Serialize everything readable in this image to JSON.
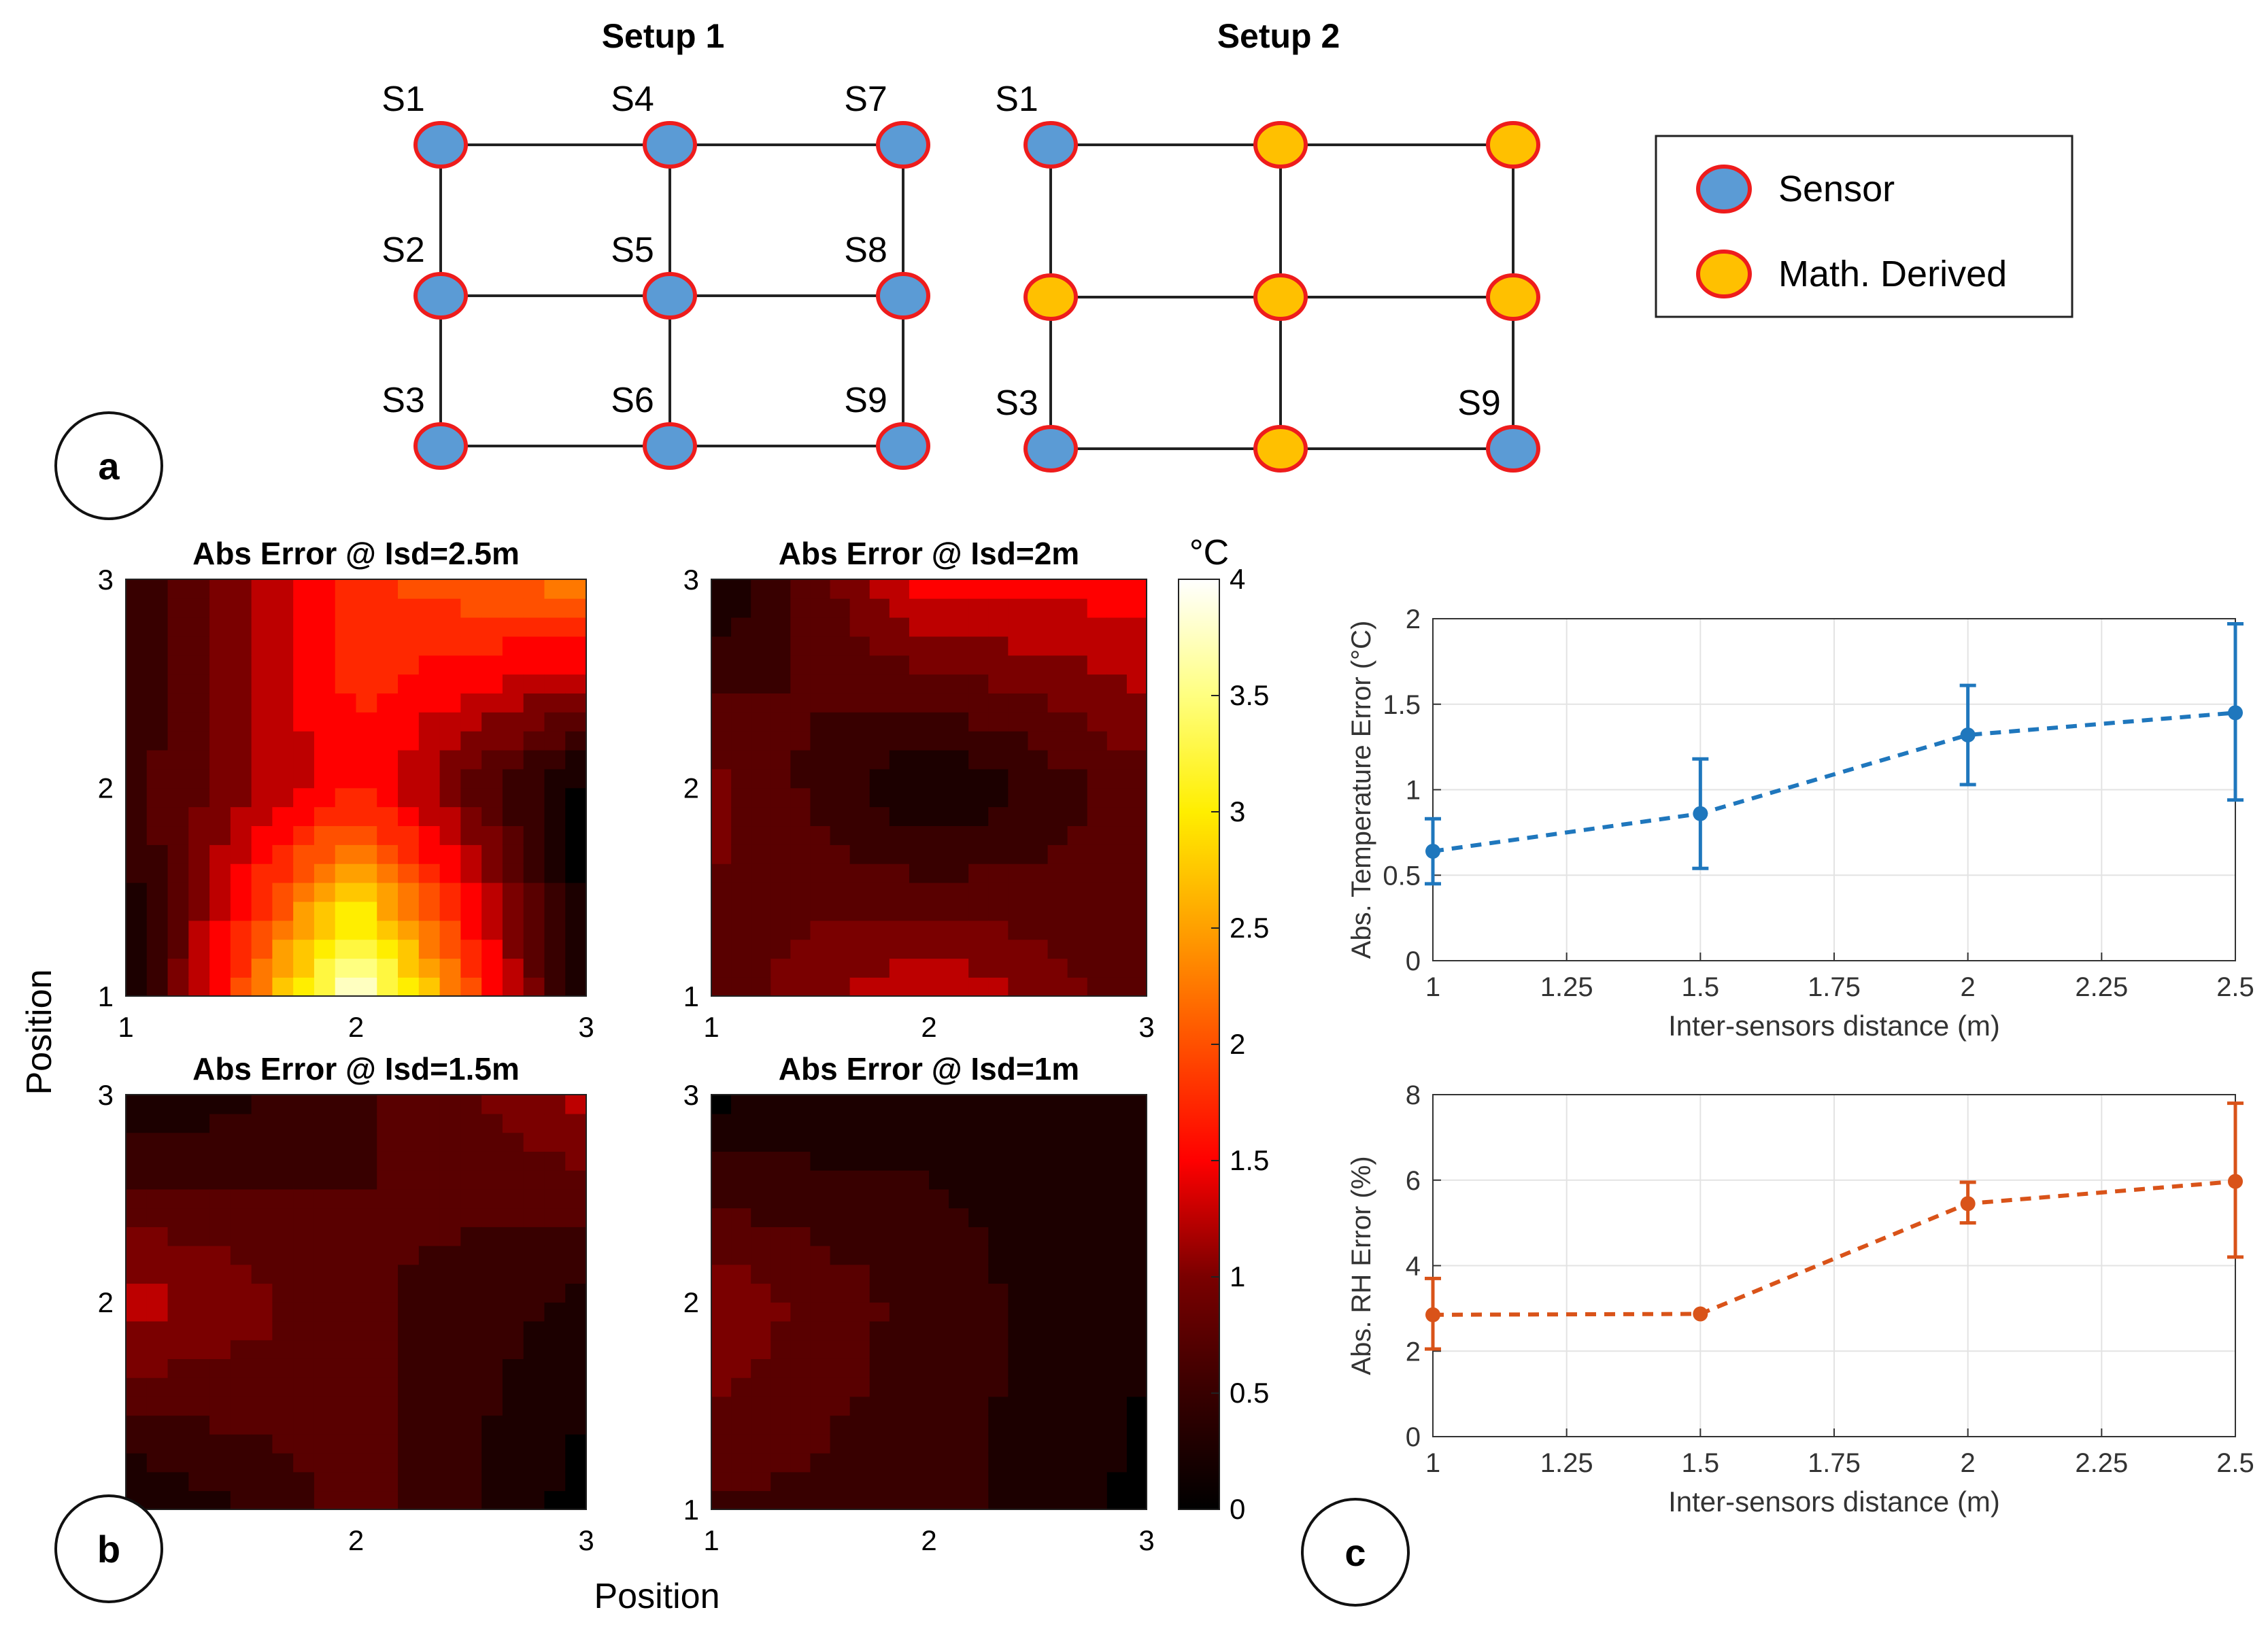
{
  "panel_a": {
    "badge": "a",
    "setup1": {
      "title": "Setup 1",
      "labels": [
        "S1",
        "S4",
        "S7",
        "S2",
        "S5",
        "S8",
        "S3",
        "S6",
        "S9"
      ],
      "kinds": [
        "sensor",
        "sensor",
        "sensor",
        "sensor",
        "sensor",
        "sensor",
        "sensor",
        "sensor",
        "sensor"
      ]
    },
    "setup2": {
      "title": "Setup 2",
      "labels": [
        "S1",
        "",
        "",
        "",
        "",
        "",
        "S3",
        "",
        "S9"
      ],
      "kinds": [
        "sensor",
        "derived",
        "derived",
        "derived",
        "derived",
        "derived",
        "sensor",
        "derived",
        "sensor"
      ]
    },
    "legend": {
      "sensor": "Sensor",
      "derived": "Math. Derived"
    },
    "colors": {
      "sensor": "#5b9bd5",
      "derived": "#ffc000",
      "outline": "#ee1c1c",
      "line": "#222222"
    }
  },
  "panel_b": {
    "badge": "b",
    "ylabel": "Position",
    "xlabel": "Position",
    "colorbar": {
      "unit": "°C",
      "min": 0,
      "max": 4,
      "ticks": [
        "0",
        "0.5",
        "1",
        "1.5",
        "2",
        "2.5",
        "3",
        "3.5",
        "4"
      ]
    },
    "maps": [
      {
        "title": "Abs Error @ Isd=2.5m",
        "xticks": [
          "1",
          "2",
          "3"
        ],
        "yticks": [
          "1",
          "2",
          "3"
        ],
        "grid": [
          [
            0.0,
            4.0,
            0.0
          ],
          [
            0.5,
            1.6,
            0.0
          ],
          [
            0.3,
            1.8,
            2.3
          ]
        ]
      },
      {
        "title": "Abs Error @ Isd=2m",
        "xticks": [
          "1",
          "2",
          "3"
        ],
        "yticks": [
          "1",
          "2",
          "3"
        ],
        "grid": [
          [
            0.7,
            1.4,
            0.7
          ],
          [
            1.0,
            0.05,
            0.8
          ],
          [
            0.1,
            1.5,
            1.5
          ]
        ]
      },
      {
        "title": "Abs Error @ Isd=1.5m",
        "xticks": [
          "2",
          "3"
        ],
        "yticks": [
          "2",
          "3"
        ],
        "grid": [
          [
            0.05,
            0.75,
            0.0
          ],
          [
            1.3,
            0.7,
            0.3
          ],
          [
            0.1,
            0.55,
            1.2
          ]
        ]
      },
      {
        "title": "Abs Error @ Isd=1m",
        "xticks": [
          "1",
          "2",
          "3"
        ],
        "yticks": [
          "1",
          "2",
          "3"
        ],
        "grid": [
          [
            0.6,
            0.5,
            0.05
          ],
          [
            1.1,
            0.5,
            0.15
          ],
          [
            0.05,
            0.3,
            0.25
          ]
        ]
      }
    ]
  },
  "panel_c": {
    "badge": "c"
  },
  "chart_data": [
    {
      "type": "line",
      "title": "",
      "xlabel": "Inter-sensors distance (m)",
      "ylabel": "Abs. Temperature Error (°C)",
      "x": [
        1,
        1.5,
        2,
        2.5
      ],
      "values": [
        0.64,
        0.86,
        1.32,
        1.45
      ],
      "err_low": [
        0.45,
        0.54,
        1.03,
        0.94
      ],
      "err_high": [
        0.83,
        1.18,
        1.61,
        1.97
      ],
      "xlim": [
        1,
        2.5
      ],
      "ylim": [
        0,
        2
      ],
      "xticks": [
        "1",
        "1.25",
        "1.5",
        "1.75",
        "2",
        "2.25",
        "2.5"
      ],
      "yticks": [
        "0",
        "0.5",
        "1",
        "1.5",
        "2"
      ],
      "xtick_values": [
        1,
        1.25,
        1.5,
        1.75,
        2,
        2.25,
        2.5
      ],
      "ytick_values": [
        0,
        0.5,
        1,
        1.5,
        2
      ],
      "color": "#1f77bd",
      "grid": true,
      "line_style": "dashed"
    },
    {
      "type": "line",
      "title": "",
      "xlabel": "Inter-sensors distance (m)",
      "ylabel": "Abs. RH Error (%)",
      "x": [
        1,
        1.5,
        2,
        2.5
      ],
      "values": [
        2.85,
        2.87,
        5.45,
        5.97
      ],
      "err_low": [
        2.05,
        2.87,
        5.0,
        4.2
      ],
      "err_high": [
        3.7,
        2.87,
        5.95,
        7.8
      ],
      "xlim": [
        1,
        2.5
      ],
      "ylim": [
        0,
        8
      ],
      "xticks": [
        "1",
        "1.25",
        "1.5",
        "1.75",
        "2",
        "2.25",
        "2.5"
      ],
      "yticks": [
        "0",
        "2",
        "4",
        "6",
        "8"
      ],
      "xtick_values": [
        1,
        1.25,
        1.5,
        1.75,
        2,
        2.25,
        2.5
      ],
      "ytick_values": [
        0,
        2,
        4,
        6,
        8
      ],
      "color": "#d95319",
      "grid": true,
      "line_style": "dashed"
    }
  ]
}
